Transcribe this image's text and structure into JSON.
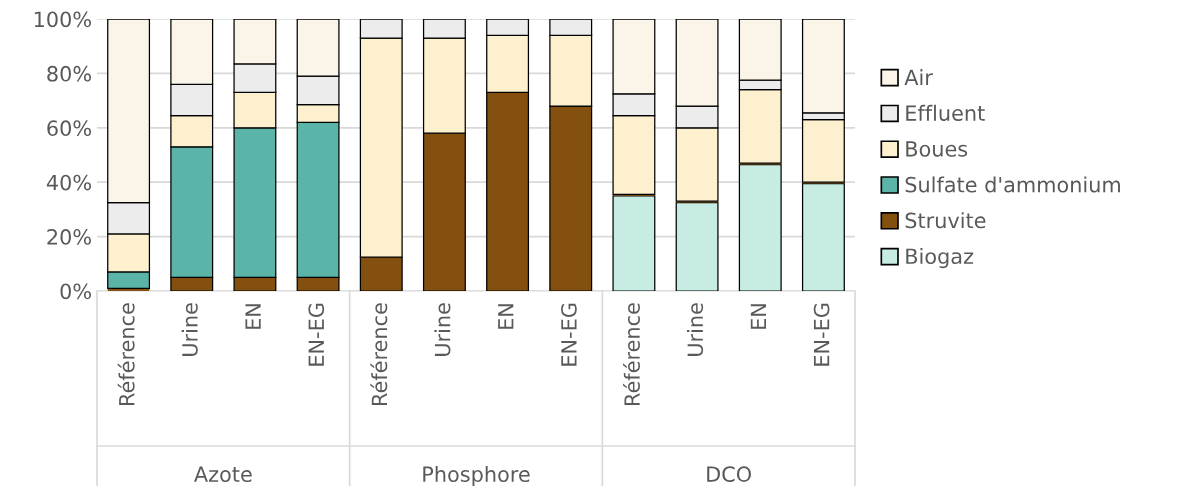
{
  "chart_data": {
    "type": "bar",
    "stacked": true,
    "categories": [
      "Référence",
      "Urine",
      "EN",
      "EN-EG",
      "Référence",
      "Urine",
      "EN",
      "EN-EG",
      "Référence",
      "Urine",
      "EN",
      "EN-EG"
    ],
    "annotations": [
      "Azote",
      "Phosphore",
      "DCO"
    ],
    "series": [
      {
        "name": "Biogaz",
        "color": "#c7ece3",
        "values": [
          null,
          null,
          null,
          null,
          null,
          null,
          null,
          null,
          35,
          32.5,
          46.5,
          39.5
        ]
      },
      {
        "name": "Struvite",
        "color": "#84500f",
        "values": [
          1,
          5,
          5,
          5,
          12.5,
          58,
          73,
          68,
          0.5,
          0.5,
          0.5,
          0.5
        ]
      },
      {
        "name": "Sulfate d'ammonium",
        "color": "#5ab4a8",
        "values": [
          6,
          48,
          55,
          57,
          null,
          null,
          null,
          null,
          null,
          null,
          null,
          null
        ]
      },
      {
        "name": "Boues",
        "color": "#fdf0cf",
        "values": [
          14,
          11.5,
          13,
          6.5,
          80.5,
          35,
          21,
          26,
          29,
          27,
          27,
          23
        ]
      },
      {
        "name": "Effluent",
        "color": "#ececec",
        "values": [
          11.5,
          11.5,
          10.5,
          10.5,
          7,
          7,
          6,
          6,
          8,
          8,
          3.5,
          2.5
        ]
      },
      {
        "name": "Air",
        "color": "#fbf4e8",
        "values": [
          67.5,
          24,
          16.5,
          21,
          null,
          null,
          null,
          null,
          27.5,
          32,
          22.5,
          34.5
        ]
      }
    ],
    "ylim": [
      0,
      100
    ],
    "yticks": [
      {
        "value": 0,
        "label": "0%"
      },
      {
        "value": 20,
        "label": "20%"
      },
      {
        "value": 40,
        "label": "40%"
      },
      {
        "value": 60,
        "label": "60%"
      },
      {
        "value": 80,
        "label": "80%"
      },
      {
        "value": 100,
        "label": "100%"
      }
    ],
    "grid": "y",
    "legend": "right"
  }
}
